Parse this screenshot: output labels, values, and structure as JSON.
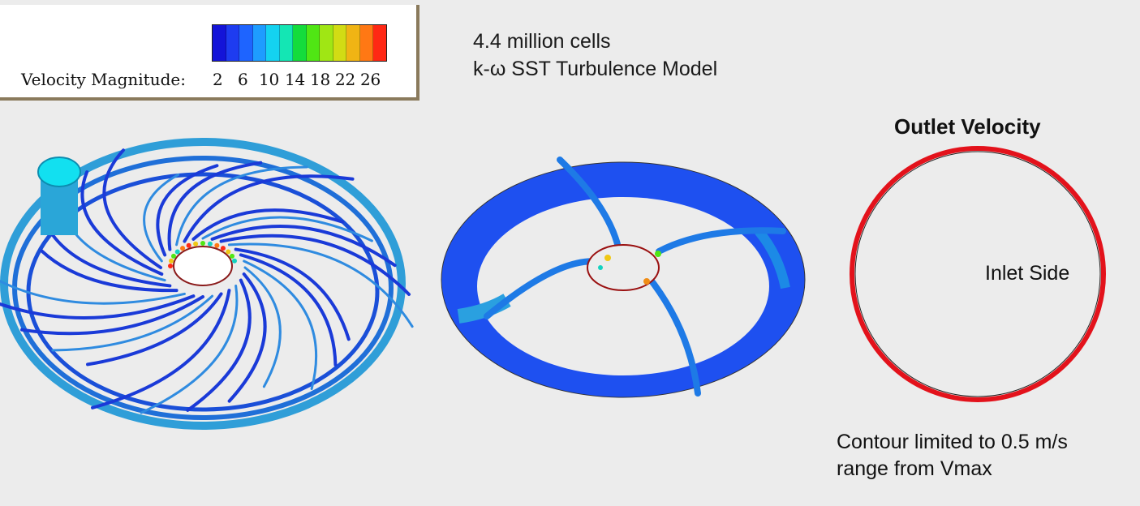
{
  "legend": {
    "label": "Velocity Magnitude:",
    "ticks": [
      "2",
      "6",
      "10",
      "14",
      "18",
      "22",
      "26"
    ],
    "colors": [
      "#1414d8",
      "#1e3cf0",
      "#1e64ff",
      "#1e9cff",
      "#14d2f0",
      "#14e6b4",
      "#14dc3c",
      "#50e614",
      "#a0e614",
      "#d2dc14",
      "#f0b414",
      "#ff7814",
      "#ff2814"
    ]
  },
  "info": {
    "line1": "4.4 million cells",
    "line2": "k-ω SST Turbulence Model"
  },
  "outlet": {
    "title": "Outlet Velocity",
    "inlet_label": "Inlet Side",
    "ring_color": "#e3121b"
  },
  "note": {
    "line1": "Contour limited to 0.5 m/s",
    "line2": "range from Vmax"
  }
}
